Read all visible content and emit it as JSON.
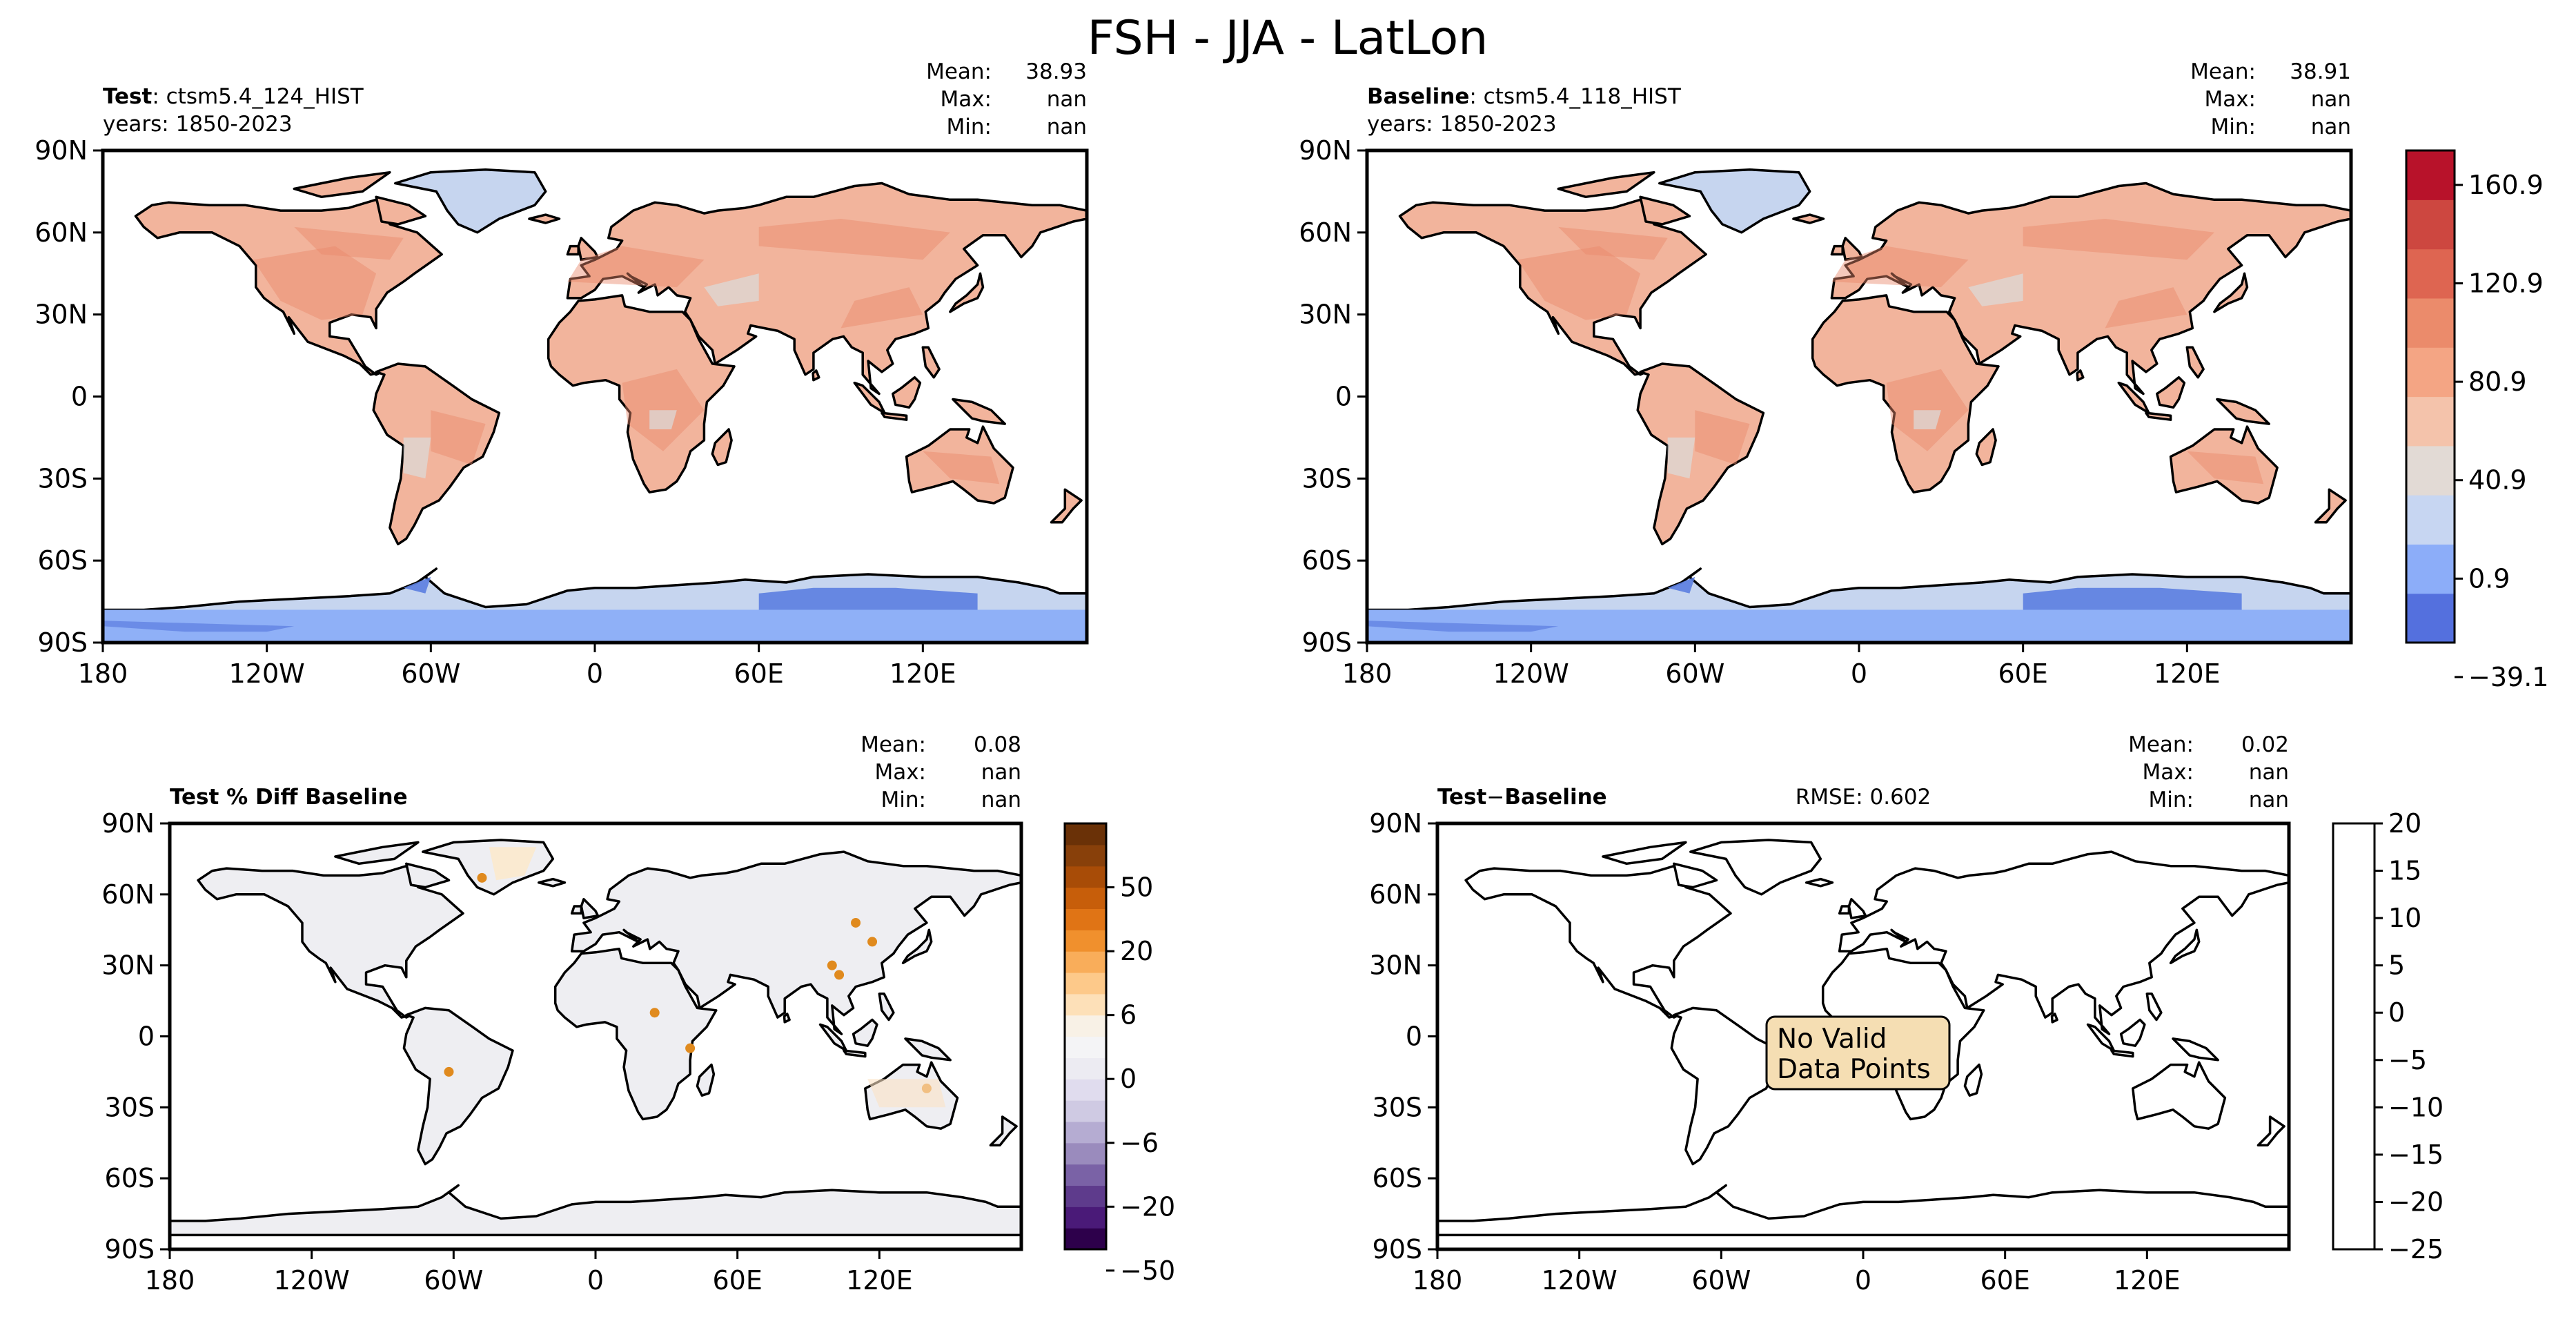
{
  "figure_title": "FSH - JJA - LatLon",
  "colors": {
    "land_warm_main": "#f2b49c",
    "land_warm_deep": "#e8876a",
    "land_neutral": "#dcdcdc",
    "land_cool": "#c6d5ef",
    "ice_blue": "#8fb0f7",
    "ice_deep": "#5b7ee0",
    "diff_land": "#eeeef2",
    "diff_hot": "#e08a1e",
    "nodata_box": "#f5deb3"
  },
  "chart_data": [
    {
      "type": "heatmap",
      "panel": "test",
      "title_bold": "Test",
      "title_rest": ": ctsm5.4_124_HIST",
      "years": "years: 1850-2023",
      "stats": [
        {
          "label": "Mean:",
          "value": "38.93"
        },
        {
          "label": "Max:",
          "value": "nan"
        },
        {
          "label": "Min:",
          "value": "nan"
        }
      ],
      "x_ticks": [
        "180",
        "120W",
        "60W",
        "0",
        "60E",
        "120E"
      ],
      "y_ticks": [
        "90N",
        "60N",
        "30N",
        "0",
        "30S",
        "60S",
        "90S"
      ],
      "lon_range": [
        -180,
        180
      ],
      "lat_range": [
        -90,
        90
      ]
    },
    {
      "type": "heatmap",
      "panel": "baseline",
      "title_bold": "Baseline",
      "title_rest": ": ctsm5.4_118_HIST",
      "years": "years: 1850-2023",
      "stats": [
        {
          "label": "Mean:",
          "value": "38.91"
        },
        {
          "label": "Max:",
          "value": "nan"
        },
        {
          "label": "Min:",
          "value": "nan"
        }
      ],
      "x_ticks": [
        "180",
        "120W",
        "60W",
        "0",
        "60E",
        "120E"
      ],
      "y_ticks": [
        "90N",
        "60N",
        "30N",
        "0",
        "30S",
        "60S",
        "90S"
      ],
      "lon_range": [
        -180,
        180
      ],
      "lat_range": [
        -90,
        90
      ],
      "colorbar": {
        "colors": [
          "#5470de",
          "#8cadf9",
          "#c7d6f2",
          "#e2dad5",
          "#f4c3ab",
          "#f4a584",
          "#eb8b6b",
          "#de6551",
          "#cd4740",
          "#b8122a"
        ],
        "tick_labels": [
          "160.9",
          "120.9",
          "80.9",
          "40.9",
          "0.9",
          "−39.1"
        ],
        "tick_levels": [
          9.3,
          7.3,
          5.3,
          3.3,
          1.3,
          -0.7
        ],
        "levels": 10
      }
    },
    {
      "type": "heatmap",
      "panel": "pct_diff",
      "title_bold": "Test % Diff Baseline",
      "stats": [
        {
          "label": "Mean:",
          "value": "0.08"
        },
        {
          "label": "Max:",
          "value": "nan"
        },
        {
          "label": "Min:",
          "value": "nan"
        }
      ],
      "x_ticks": [
        "180",
        "120W",
        "60W",
        "0",
        "60E",
        "120E"
      ],
      "y_ticks": [
        "90N",
        "60N",
        "30N",
        "0",
        "30S",
        "60S",
        "90S"
      ],
      "lon_range": [
        -180,
        180
      ],
      "lat_range": [
        -90,
        90
      ],
      "colorbar": {
        "colors": [
          "#2d004b",
          "#4a1a78",
          "#5e3b8c",
          "#7a62a6",
          "#9a8bbd",
          "#b5acd2",
          "#cfcae3",
          "#e0dcee",
          "#ecebf2",
          "#f4f4f6",
          "#f8f1e6",
          "#fde0b8",
          "#fdc98a",
          "#f9ad5a",
          "#f0902d",
          "#e07415",
          "#c75e0a",
          "#a84c07",
          "#88400a",
          "#6a3107"
        ],
        "tick_labels": [
          "50",
          "20",
          "6",
          "0",
          "−6",
          "−20",
          "−50"
        ],
        "tick_levels": [
          17,
          14,
          11,
          8,
          5,
          2,
          -1
        ],
        "levels": 20
      }
    },
    {
      "type": "heatmap",
      "panel": "abs_diff",
      "title_bold": "Test",
      "title_minus": "−",
      "title_rest": "Baseline",
      "rmse": "RMSE: 0.602",
      "stats": [
        {
          "label": "Mean:",
          "value": "0.02"
        },
        {
          "label": "Max:",
          "value": "nan"
        },
        {
          "label": "Min:",
          "value": "nan"
        }
      ],
      "x_ticks": [
        "180",
        "120W",
        "60W",
        "0",
        "60E",
        "120E"
      ],
      "y_ticks": [
        "90N",
        "60N",
        "30N",
        "0",
        "30S",
        "60S",
        "90S"
      ],
      "lon_range": [
        -180,
        180
      ],
      "lat_range": [
        -90,
        90
      ],
      "annotation_line1": "No Valid",
      "annotation_line2": "Data Points",
      "colorbar": {
        "colors": [
          "#ffffff"
        ],
        "tick_labels": [
          "20",
          "15",
          "10",
          "5",
          "0",
          "−5",
          "−10",
          "−15",
          "−20",
          "−25"
        ],
        "tick_values": [
          20,
          15,
          10,
          5,
          0,
          -5,
          -10,
          -15,
          -20,
          -25
        ],
        "range": [
          -25,
          20
        ]
      }
    }
  ]
}
